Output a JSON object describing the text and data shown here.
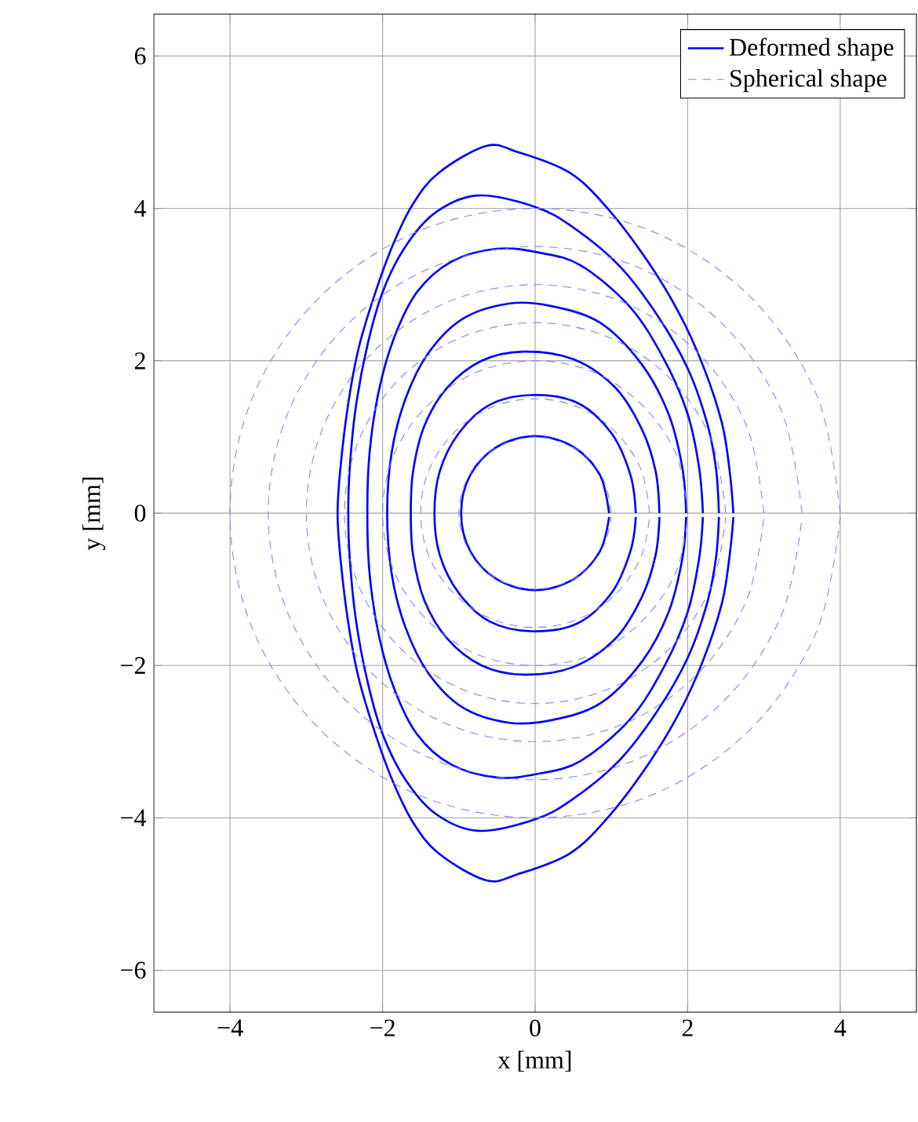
{
  "chart_data": {
    "type": "line",
    "xlabel": "x [mm]",
    "ylabel": "y [mm]",
    "xlim": [
      -5,
      5
    ],
    "ylim": [
      -6.55,
      6.55
    ],
    "xticks": [
      {
        "value": -4,
        "label": "−4"
      },
      {
        "value": -2,
        "label": "−2"
      },
      0,
      2,
      4
    ],
    "yticks": [
      {
        "value": -6,
        "label": "−6"
      },
      {
        "value": -4,
        "label": "−4"
      },
      {
        "value": -2,
        "label": "−2"
      },
      0,
      2,
      4,
      6
    ],
    "grid": true,
    "legend": "top right",
    "marker": "none",
    "series": [
      {
        "name": "Deformed shape",
        "color": "#0000ff",
        "line_style": "solid",
        "x": [
          0.97,
          0.85,
          0.5,
          0,
          -0.5,
          -0.85,
          -0.97,
          -0.85,
          -0.5,
          0,
          0.5,
          0.85,
          0.97
        ],
        "values": [
          0,
          0.5,
          0.87,
          1.01,
          0.87,
          0.5,
          0,
          -0.5,
          -0.87,
          -1.01,
          -0.87,
          -0.5,
          -0.05
        ]
      },
      {
        "color": "#0000ff",
        "line_style": "solid",
        "x": [
          1.32,
          1.25,
          1.0,
          0.55,
          -0.05,
          -0.6,
          -1.0,
          -1.25,
          -1.32,
          -1.25,
          -1.0,
          -0.6,
          -0.05,
          0.55,
          1.0,
          1.25,
          1.32
        ],
        "values": [
          0,
          0.5,
          1.05,
          1.45,
          1.55,
          1.42,
          1.05,
          0.55,
          0,
          -0.55,
          -1.05,
          -1.42,
          -1.55,
          -1.45,
          -1.05,
          -0.5,
          -0.05
        ]
      },
      {
        "color": "#0000ff",
        "line_style": "solid",
        "x": [
          1.63,
          1.58,
          1.4,
          1.05,
          0.5,
          -0.15,
          -0.7,
          -1.15,
          -1.45,
          -1.6,
          -1.63,
          -1.6,
          -1.45,
          -1.15,
          -0.7,
          -0.15,
          0.5,
          1.05,
          1.4,
          1.58,
          1.63
        ],
        "values": [
          0,
          0.55,
          1.1,
          1.65,
          2.02,
          2.12,
          2.0,
          1.65,
          1.15,
          0.55,
          0,
          -0.55,
          -1.15,
          -1.65,
          -2.0,
          -2.12,
          -2.02,
          -1.65,
          -1.1,
          -0.55,
          -0.05
        ]
      },
      {
        "color": "#0000ff",
        "line_style": "solid",
        "x": [
          1.98,
          1.93,
          1.75,
          1.4,
          0.85,
          0.2,
          -0.35,
          -0.95,
          -1.4,
          -1.7,
          -1.88,
          -1.94,
          -1.88,
          -1.7,
          -1.4,
          -0.95,
          -0.35,
          0.2,
          0.85,
          1.4,
          1.75,
          1.93,
          1.98
        ],
        "values": [
          0,
          0.6,
          1.3,
          1.95,
          2.5,
          2.72,
          2.75,
          2.55,
          2.1,
          1.5,
          0.8,
          0,
          -0.8,
          -1.5,
          -2.1,
          -2.55,
          -2.75,
          -2.72,
          -2.5,
          -1.95,
          -1.3,
          -0.6,
          -0.05
        ]
      },
      {
        "color": "#0000ff",
        "line_style": "solid",
        "x": [
          2.2,
          2.15,
          2.0,
          1.7,
          1.25,
          0.6,
          0.05,
          -0.5,
          -1.1,
          -1.55,
          -1.85,
          -2.05,
          -2.17,
          -2.2,
          -2.17,
          -2.05,
          -1.85,
          -1.55,
          -1.1,
          -0.5,
          0.05,
          0.6,
          1.25,
          1.7,
          2.0,
          2.15,
          2.2
        ],
        "values": [
          0,
          0.6,
          1.3,
          2.0,
          2.7,
          3.25,
          3.42,
          3.47,
          3.3,
          2.9,
          2.3,
          1.6,
          0.8,
          0,
          -0.8,
          -1.6,
          -2.3,
          -2.9,
          -3.3,
          -3.47,
          -3.42,
          -3.25,
          -2.7,
          -2.0,
          -1.3,
          -0.6,
          -0.05
        ]
      },
      {
        "color": "#0000ff",
        "line_style": "solid",
        "x": [
          2.41,
          2.37,
          2.25,
          2.0,
          1.6,
          1.1,
          0.5,
          0.0,
          -0.75,
          -1.3,
          -1.7,
          -2.0,
          -2.2,
          -2.35,
          -2.43,
          -2.45,
          -2.43,
          -2.35,
          -2.2,
          -2.0,
          -1.7,
          -1.3,
          -0.75,
          0.0,
          0.5,
          1.1,
          1.6,
          2.0,
          2.25,
          2.37,
          2.41
        ],
        "values": [
          0,
          0.6,
          1.2,
          1.9,
          2.6,
          3.25,
          3.75,
          4.02,
          4.17,
          3.95,
          3.5,
          2.9,
          2.2,
          1.4,
          0.6,
          0,
          -0.6,
          -1.4,
          -2.2,
          -2.9,
          -3.5,
          -3.95,
          -4.17,
          -4.02,
          -3.75,
          -3.25,
          -2.6,
          -1.9,
          -1.2,
          -0.6,
          -0.05
        ]
      },
      {
        "color": "#0000ff",
        "line_style": "solid",
        "x": [
          2.6,
          2.55,
          2.45,
          2.2,
          1.89,
          1.48,
          0.95,
          0.45,
          -0.23,
          -0.64,
          -1.26,
          -1.6,
          -1.87,
          -2.12,
          -2.32,
          -2.45,
          -2.55,
          -2.59,
          -2.55,
          -2.45,
          -2.32,
          -2.12,
          -1.87,
          -1.6,
          -1.26,
          -0.64,
          -0.23,
          0.45,
          0.95,
          1.48,
          1.89,
          2.2,
          2.45,
          2.55,
          2.6
        ],
        "values": [
          0,
          0.56,
          1.18,
          1.94,
          2.62,
          3.3,
          4.0,
          4.47,
          4.74,
          4.82,
          4.47,
          4.06,
          3.51,
          2.82,
          2.14,
          1.44,
          0.62,
          0,
          -0.62,
          -1.44,
          -2.14,
          -2.82,
          -3.51,
          -4.06,
          -4.47,
          -4.82,
          -4.74,
          -4.47,
          -4.0,
          -3.3,
          -2.62,
          -1.94,
          -1.18,
          -0.56,
          -0.05
        ]
      },
      {
        "name": "Spherical shape",
        "color": "#8080ff",
        "line_style": "dashed",
        "x": [
          1,
          0.92,
          0.71,
          0.38,
          0,
          -0.38,
          -0.71,
          -0.92,
          -1,
          -0.92,
          -0.71,
          -0.38,
          0,
          0.38,
          0.71,
          0.92,
          1
        ],
        "values": [
          0,
          0.38,
          0.71,
          0.92,
          1,
          0.92,
          0.71,
          0.38,
          0,
          -0.38,
          -0.71,
          -0.92,
          -1,
          -0.92,
          -0.71,
          -0.38,
          -0.05
        ]
      },
      {
        "color": "#8080ff",
        "line_style": "dashed",
        "x": [
          1.5,
          1.39,
          1.06,
          0.57,
          0,
          -0.57,
          -1.06,
          -1.39,
          -1.5,
          -1.39,
          -1.06,
          -0.57,
          0,
          0.57,
          1.06,
          1.39,
          1.5
        ],
        "values": [
          0,
          0.57,
          1.06,
          1.39,
          1.5,
          1.39,
          1.06,
          0.57,
          0,
          -0.57,
          -1.06,
          -1.39,
          -1.5,
          -1.39,
          -1.06,
          -0.57,
          -0.05
        ]
      },
      {
        "color": "#8080ff",
        "line_style": "dashed",
        "x": [
          2,
          1.85,
          1.41,
          0.77,
          0,
          -0.77,
          -1.41,
          -1.85,
          -2,
          -1.85,
          -1.41,
          -0.77,
          0,
          0.77,
          1.41,
          1.85,
          2
        ],
        "values": [
          0,
          0.77,
          1.41,
          1.85,
          2,
          1.85,
          1.41,
          0.77,
          0,
          -0.77,
          -1.41,
          -1.85,
          -2,
          -1.85,
          -1.41,
          -0.77,
          -0.05
        ]
      },
      {
        "color": "#8080ff",
        "line_style": "dashed",
        "x": [
          2.5,
          2.31,
          1.77,
          0.96,
          0,
          -0.96,
          -1.77,
          -2.31,
          -2.5,
          -2.31,
          -1.77,
          -0.96,
          0,
          0.96,
          1.77,
          2.31,
          2.5
        ],
        "values": [
          0,
          0.96,
          1.77,
          2.31,
          2.5,
          2.31,
          1.77,
          0.96,
          0,
          -0.96,
          -1.77,
          -2.31,
          -2.5,
          -2.31,
          -1.77,
          -0.96,
          -0.05
        ]
      },
      {
        "color": "#8080ff",
        "line_style": "dashed",
        "x": [
          3,
          2.77,
          2.12,
          1.15,
          0,
          -1.15,
          -2.12,
          -2.77,
          -3,
          -2.77,
          -2.12,
          -1.15,
          0,
          1.15,
          2.12,
          2.77,
          3
        ],
        "values": [
          0,
          1.15,
          2.12,
          2.77,
          3,
          2.77,
          2.12,
          1.15,
          0,
          -1.15,
          -2.12,
          -2.77,
          -3,
          -2.77,
          -2.12,
          -1.15,
          -0.05
        ]
      },
      {
        "color": "#8080ff",
        "line_style": "dashed",
        "x": [
          3.5,
          3.23,
          2.47,
          1.34,
          0,
          -1.34,
          -2.47,
          -3.23,
          -3.5,
          -3.23,
          -2.47,
          -1.34,
          0,
          1.34,
          2.47,
          3.23,
          3.5
        ],
        "values": [
          0,
          1.34,
          2.47,
          3.23,
          3.5,
          3.23,
          2.47,
          1.34,
          0,
          -1.34,
          -2.47,
          -3.23,
          -3.5,
          -3.23,
          -2.47,
          -1.34,
          -0.05
        ]
      },
      {
        "color": "#8080ff",
        "line_style": "dashed",
        "x": [
          4,
          3.7,
          2.83,
          1.53,
          0,
          -1.53,
          -2.83,
          -3.7,
          -4,
          -3.7,
          -2.83,
          -1.53,
          0,
          1.53,
          2.83,
          3.7,
          4
        ],
        "values": [
          0,
          1.53,
          2.83,
          3.7,
          4,
          3.7,
          2.83,
          1.53,
          0,
          -1.53,
          -2.83,
          -3.7,
          -4,
          -3.7,
          -2.83,
          -1.53,
          -0.05
        ]
      }
    ]
  }
}
